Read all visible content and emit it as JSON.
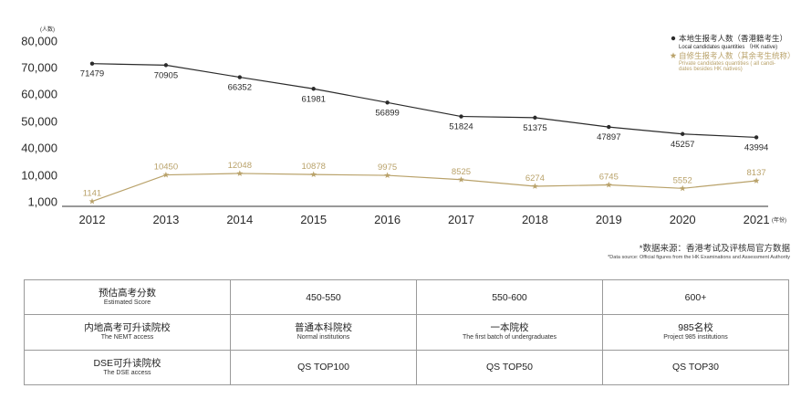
{
  "chart_data": {
    "type": "line",
    "y_unit_label": "(人数)",
    "x_unit_label": "(年份)",
    "categories": [
      "2012",
      "2013",
      "2014",
      "2015",
      "2016",
      "2017",
      "2018",
      "2019",
      "2020",
      "2021"
    ],
    "yticks": [
      "80,000",
      "70,000",
      "60,000",
      "50,000",
      "40,000",
      "10,000",
      "1,000"
    ],
    "grid": false,
    "legend_position": "top-right",
    "series": [
      {
        "name": "本地生报考人数（香港籍考生）",
        "name_en": "Local candidates quantities （HK native)",
        "color": "#2b2b2b",
        "marker": "circle",
        "values": [
          71479,
          70905,
          66352,
          61981,
          56899,
          51824,
          51375,
          47897,
          45257,
          43994
        ],
        "labels": [
          "71479",
          "70905",
          "66352",
          "61981",
          "56899",
          "51824",
          "51375",
          "47897",
          "45257",
          "43994"
        ]
      },
      {
        "name": "自修生报考人数（其余考生统称）",
        "name_en": "Private candidates quantities ( all candi-dates besides HK natives)",
        "color": "#b9a26a",
        "marker": "star",
        "values": [
          1141,
          10450,
          12048,
          10878,
          9975,
          8525,
          6274,
          6745,
          5552,
          8137
        ],
        "labels": [
          "1141",
          "10450",
          "12048",
          "10878",
          "9975",
          "8525",
          "6274",
          "6745",
          "5552",
          "8137"
        ]
      }
    ]
  },
  "source": {
    "zh": "*数据来源：香港考试及评核局官方数据",
    "en": "*Data source:  Official figures from the HK Examinations and Assessment Authority"
  },
  "table": {
    "rows": [
      {
        "label_zh": "预估高考分数",
        "label_en": "Estimated Score",
        "cells": [
          {
            "zh": "450-550",
            "en": ""
          },
          {
            "zh": "550-600",
            "en": ""
          },
          {
            "zh": "600+",
            "en": ""
          }
        ]
      },
      {
        "label_zh": "内地高考可升读院校",
        "label_en": "The NEMT access",
        "cells": [
          {
            "zh": "普通本科院校",
            "en": "Normal institutions"
          },
          {
            "zh": "一本院校",
            "en": "The first batch of undergraduates"
          },
          {
            "zh": "985名校",
            "en": "Project 985 institutions"
          }
        ]
      },
      {
        "label_zh": "DSE可升读院校",
        "label_en": "The DSE access",
        "cells": [
          {
            "zh": "QS TOP100",
            "en": ""
          },
          {
            "zh": "QS TOP50",
            "en": ""
          },
          {
            "zh": "QS TOP30",
            "en": ""
          }
        ]
      }
    ]
  }
}
